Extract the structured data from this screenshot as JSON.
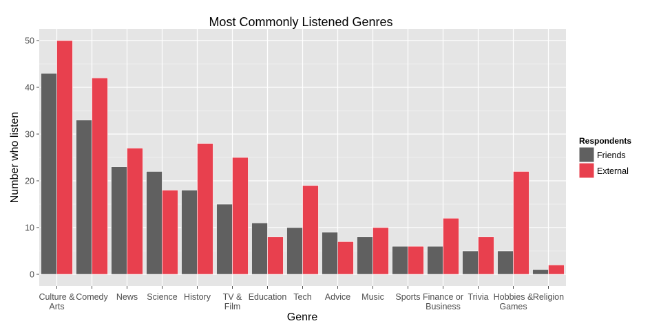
{
  "chart_data": {
    "type": "bar",
    "title": "Most Commonly Listened Genres",
    "xlabel": "Genre",
    "ylabel": "Number who listen",
    "ylim": [
      -2.5,
      52.5
    ],
    "yticks": [
      0,
      10,
      20,
      30,
      40,
      50
    ],
    "grid": true,
    "legend_position": "right",
    "legend_title": "Respondents",
    "categories": [
      [
        "Culture &",
        "Arts"
      ],
      [
        "Comedy"
      ],
      [
        "News"
      ],
      [
        "Science"
      ],
      [
        "History"
      ],
      [
        "TV &",
        "Film"
      ],
      [
        "Education"
      ],
      [
        "Tech"
      ],
      [
        "Advice"
      ],
      [
        "Music"
      ],
      [
        "Sports"
      ],
      [
        "Finance or",
        "Business"
      ],
      [
        "Trivia"
      ],
      [
        "Hobbies &",
        "Games"
      ],
      [
        "Religion"
      ]
    ],
    "series": [
      {
        "name": "Friends",
        "color": "#606060",
        "values": [
          43,
          33,
          23,
          22,
          18,
          15,
          11,
          10,
          9,
          8,
          6,
          6,
          5,
          5,
          1
        ]
      },
      {
        "name": "External",
        "color": "#e8404e",
        "values": [
          50,
          42,
          27,
          18,
          28,
          25,
          8,
          19,
          7,
          10,
          6,
          12,
          8,
          22,
          2
        ]
      }
    ],
    "panel_background": "#e5e5e5",
    "grid_color": "#ffffff"
  }
}
